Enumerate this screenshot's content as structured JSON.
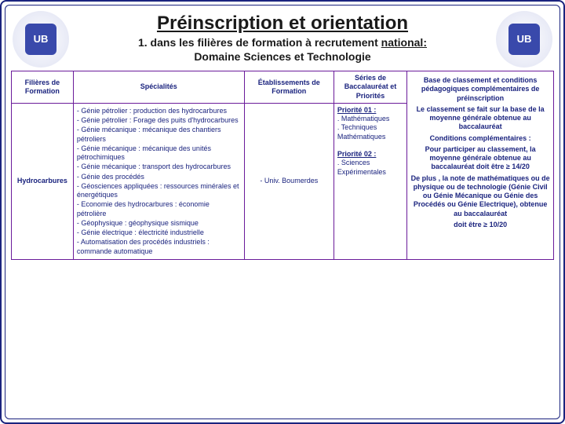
{
  "header": {
    "title": "Préinscription et orientation",
    "subtitle_prefix": "1. dans les filières de formation à recrutement ",
    "subtitle_underlined": "national:",
    "domain": "Domaine Sciences et Technologie"
  },
  "table": {
    "columns": {
      "filieres": "Filières de Formation",
      "specialites": "Spécialités",
      "etablissements": "Établissements de Formation",
      "series": "Séries de Baccalauréat et Priorités",
      "base": "Base de classement et conditions pédagogiques complémentaires de préinscription"
    },
    "row": {
      "filiere": "Hydrocarbures",
      "specialites": [
        "- Génie pétrolier : production des hydrocarbures",
        "- Génie pétrolier : Forage des puits d'hydrocarbures",
        "- Génie mécanique : mécanique des chantiers pétroliers",
        "- Génie mécanique : mécanique des unités pétrochimiques",
        "- Génie mécanique : transport des hydrocarbures",
        "- Génie des procédés",
        "- Géosciences appliquées : ressources minérales et énergétiques",
        "- Economie des hydrocarbures : économie pétrolière",
        "- Géophysique : géophysique sismique",
        "- Génie électrique : électricité industrielle",
        "- Automatisation des procédés industriels : commande automatique"
      ],
      "etablissement": "- Univ. Boumerdes",
      "series": {
        "p1_label": "Priorité 01 :",
        "p1_items": ". Mathématiques",
        "p1_items2": ". Techniques Mathématiques",
        "p2_label": "Priorité  02 :",
        "p2_items": ". Sciences Expérimentales"
      }
    },
    "base": {
      "para1": "Le classement se fait sur la base de la moyenne générale obtenue au baccalauréat",
      "cond_title": "Conditions complémentaires :",
      "para2": "Pour participer au classement, la moyenne générale obtenue au baccalauréat doit être ≥ 14/20",
      "para3": "De plus , la note de mathématiques ou de physique ou de technologie (Génie Civil ou Génie Mécanique ou Génie des Procédés ou Génie Electrique), obtenue au baccalauréat",
      "para4": "doit être ≥ 10/20"
    }
  },
  "styling": {
    "border_color": "#6a1b9a",
    "frame_color": "#1a237e",
    "text_color": "#1a237e",
    "heading_color": "#1a1a1a",
    "title_fontsize_pt": 18,
    "subtitle_fontsize_pt": 11,
    "cell_fontsize_pt": 7,
    "background": "#ffffff"
  }
}
